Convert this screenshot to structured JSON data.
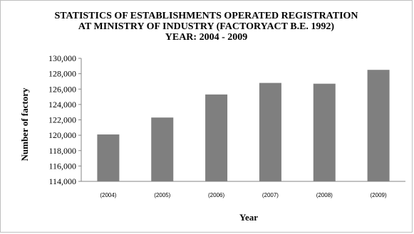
{
  "chart_data": {
    "type": "bar",
    "title_lines": [
      "STATISTICS OF ESTABLISHMENTS OPERATED REGISTRATION",
      "AT MINISTRY OF INDUSTRY (FACTORYACT B.E. 1992)",
      "YEAR: 2004 - 2009"
    ],
    "xlabel": "Year",
    "ylabel": "Number of factory",
    "categories": [
      "(2004)",
      "(2005)",
      "(2006)",
      "(2007)",
      "(2008)",
      "(2009)"
    ],
    "values": [
      120100,
      122300,
      125300,
      126800,
      126700,
      128500
    ],
    "ylim": [
      114000,
      130000
    ],
    "yticks": [
      "114,000",
      "116,000",
      "118,000",
      "120,000",
      "122,000",
      "124,000",
      "126,000",
      "128,000",
      "130,000"
    ],
    "ytick_values": [
      114000,
      116000,
      118000,
      120000,
      122000,
      124000,
      126000,
      128000,
      130000
    ],
    "bar_color": "#7f7f7f",
    "grid": false,
    "legend": "none"
  }
}
